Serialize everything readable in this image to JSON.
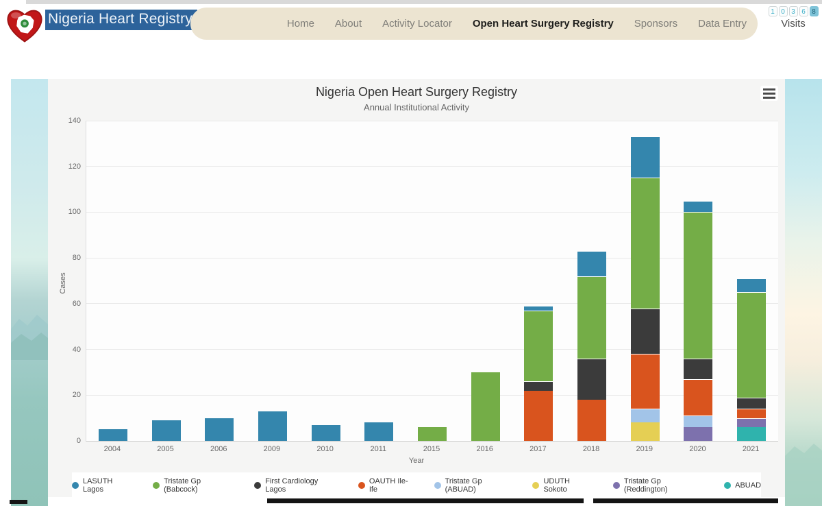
{
  "header": {
    "brand": "Nigeria Heart Registry",
    "nav": [
      {
        "label": "Home",
        "active": false
      },
      {
        "label": "About",
        "active": false
      },
      {
        "label": "Activity Locator",
        "active": false
      },
      {
        "label": "Open Heart Surgery Registry",
        "active": true
      },
      {
        "label": "Sponsors",
        "active": false
      },
      {
        "label": "Data Entry",
        "active": false
      }
    ],
    "visits": {
      "digits": [
        "1",
        "0",
        "3",
        "6",
        "8"
      ],
      "label": "Visits"
    }
  },
  "chart_data": {
    "type": "bar",
    "stacked": true,
    "title": "Nigeria Open Heart Surgery Registry",
    "subtitle": "Annual Institutional Activity",
    "xlabel": "Year",
    "ylabel": "Cases",
    "ylim": [
      0,
      140
    ],
    "ytick_step": 20,
    "grid": true,
    "legend_position": "bottom",
    "categories": [
      "2004",
      "2005",
      "2006",
      "2009",
      "2010",
      "2011",
      "2015",
      "2016",
      "2017",
      "2018",
      "2019",
      "2020",
      "2021"
    ],
    "series": [
      {
        "name": "LASUTH Lagos",
        "color": "#3486ad",
        "values": [
          5,
          9,
          10,
          13,
          7,
          8,
          0,
          0,
          2,
          11,
          18,
          5,
          6
        ]
      },
      {
        "name": "Tristate Gp (Babcock)",
        "color": "#74ad47",
        "values": [
          0,
          0,
          0,
          0,
          0,
          0,
          6,
          30,
          31,
          36,
          57,
          64,
          46
        ]
      },
      {
        "name": "First Cardiology Lagos",
        "color": "#3b3b3b",
        "values": [
          0,
          0,
          0,
          0,
          0,
          0,
          0,
          0,
          4,
          18,
          20,
          9,
          5
        ]
      },
      {
        "name": "OAUTH Ile-Ife",
        "color": "#d9541e",
        "values": [
          0,
          0,
          0,
          0,
          0,
          0,
          0,
          0,
          22,
          18,
          24,
          16,
          4
        ]
      },
      {
        "name": "Tristate Gp (ABUAD)",
        "color": "#a2c4e8",
        "values": [
          0,
          0,
          0,
          0,
          0,
          0,
          0,
          0,
          0,
          0,
          6,
          5,
          0
        ]
      },
      {
        "name": "UDUTH Sokoto",
        "color": "#e5cf54",
        "values": [
          0,
          0,
          0,
          0,
          0,
          0,
          0,
          0,
          0,
          0,
          8,
          0,
          0
        ]
      },
      {
        "name": "Tristate Gp (Reddington)",
        "color": "#7d71ad",
        "values": [
          0,
          0,
          0,
          0,
          0,
          0,
          0,
          0,
          0,
          0,
          0,
          6,
          4
        ]
      },
      {
        "name": "ABUAD",
        "color": "#2fb3ad",
        "values": [
          0,
          0,
          0,
          0,
          0,
          0,
          0,
          0,
          0,
          0,
          0,
          0,
          6
        ]
      }
    ],
    "stack_order_note": "stacked bottom-to-top in reverse series order (ABUAD at bottom, LASUTH Lagos on top)"
  }
}
